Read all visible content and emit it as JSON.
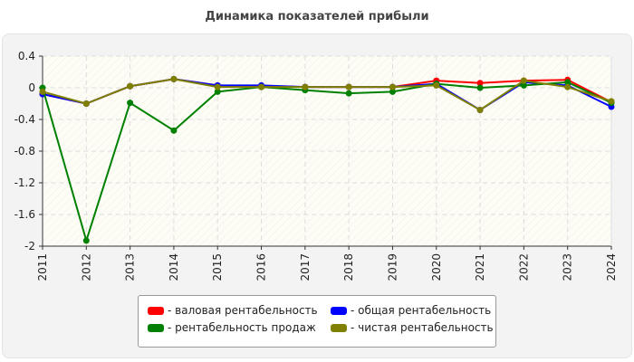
{
  "chart_data": {
    "type": "line",
    "title": "Динамика показателей прибыли",
    "categories": [
      "2011",
      "2012",
      "2013",
      "2014",
      "2015",
      "2016",
      "2017",
      "2018",
      "2019",
      "2020",
      "2021",
      "2022",
      "2023",
      "2024"
    ],
    "ylim": [
      -2,
      0.4
    ],
    "yticks": [
      "0.4",
      "0",
      "-0.4",
      "-0.8",
      "-1.2",
      "-1.6",
      "-2"
    ],
    "grid": true,
    "legend_position": "bottom",
    "series": [
      {
        "name": "- валовая рентабельность",
        "color": "#ff0000",
        "values": [
          -0.08,
          -0.2,
          0.02,
          0.11,
          0.03,
          0.02,
          0.01,
          0.01,
          0.01,
          0.09,
          0.06,
          0.09,
          0.1,
          -0.18
        ]
      },
      {
        "name": "- общая рентабельность",
        "color": "#0000ff",
        "values": [
          -0.08,
          -0.2,
          0.02,
          0.11,
          0.03,
          0.03,
          0.01,
          0.01,
          0.01,
          0.05,
          -0.28,
          0.07,
          0.03,
          -0.24
        ]
      },
      {
        "name": "- рентабельность продаж",
        "color": "#008000",
        "values": [
          0.0,
          -1.93,
          -0.19,
          -0.54,
          -0.05,
          0.01,
          -0.03,
          -0.07,
          -0.05,
          0.05,
          0.0,
          0.03,
          0.07,
          -0.19
        ]
      },
      {
        "name": "- чистая рентабельность",
        "color": "#808000",
        "values": [
          -0.05,
          -0.2,
          0.02,
          0.11,
          0.01,
          0.01,
          0.01,
          0.01,
          0.01,
          0.03,
          -0.28,
          0.09,
          0.01,
          -0.17
        ]
      }
    ]
  }
}
